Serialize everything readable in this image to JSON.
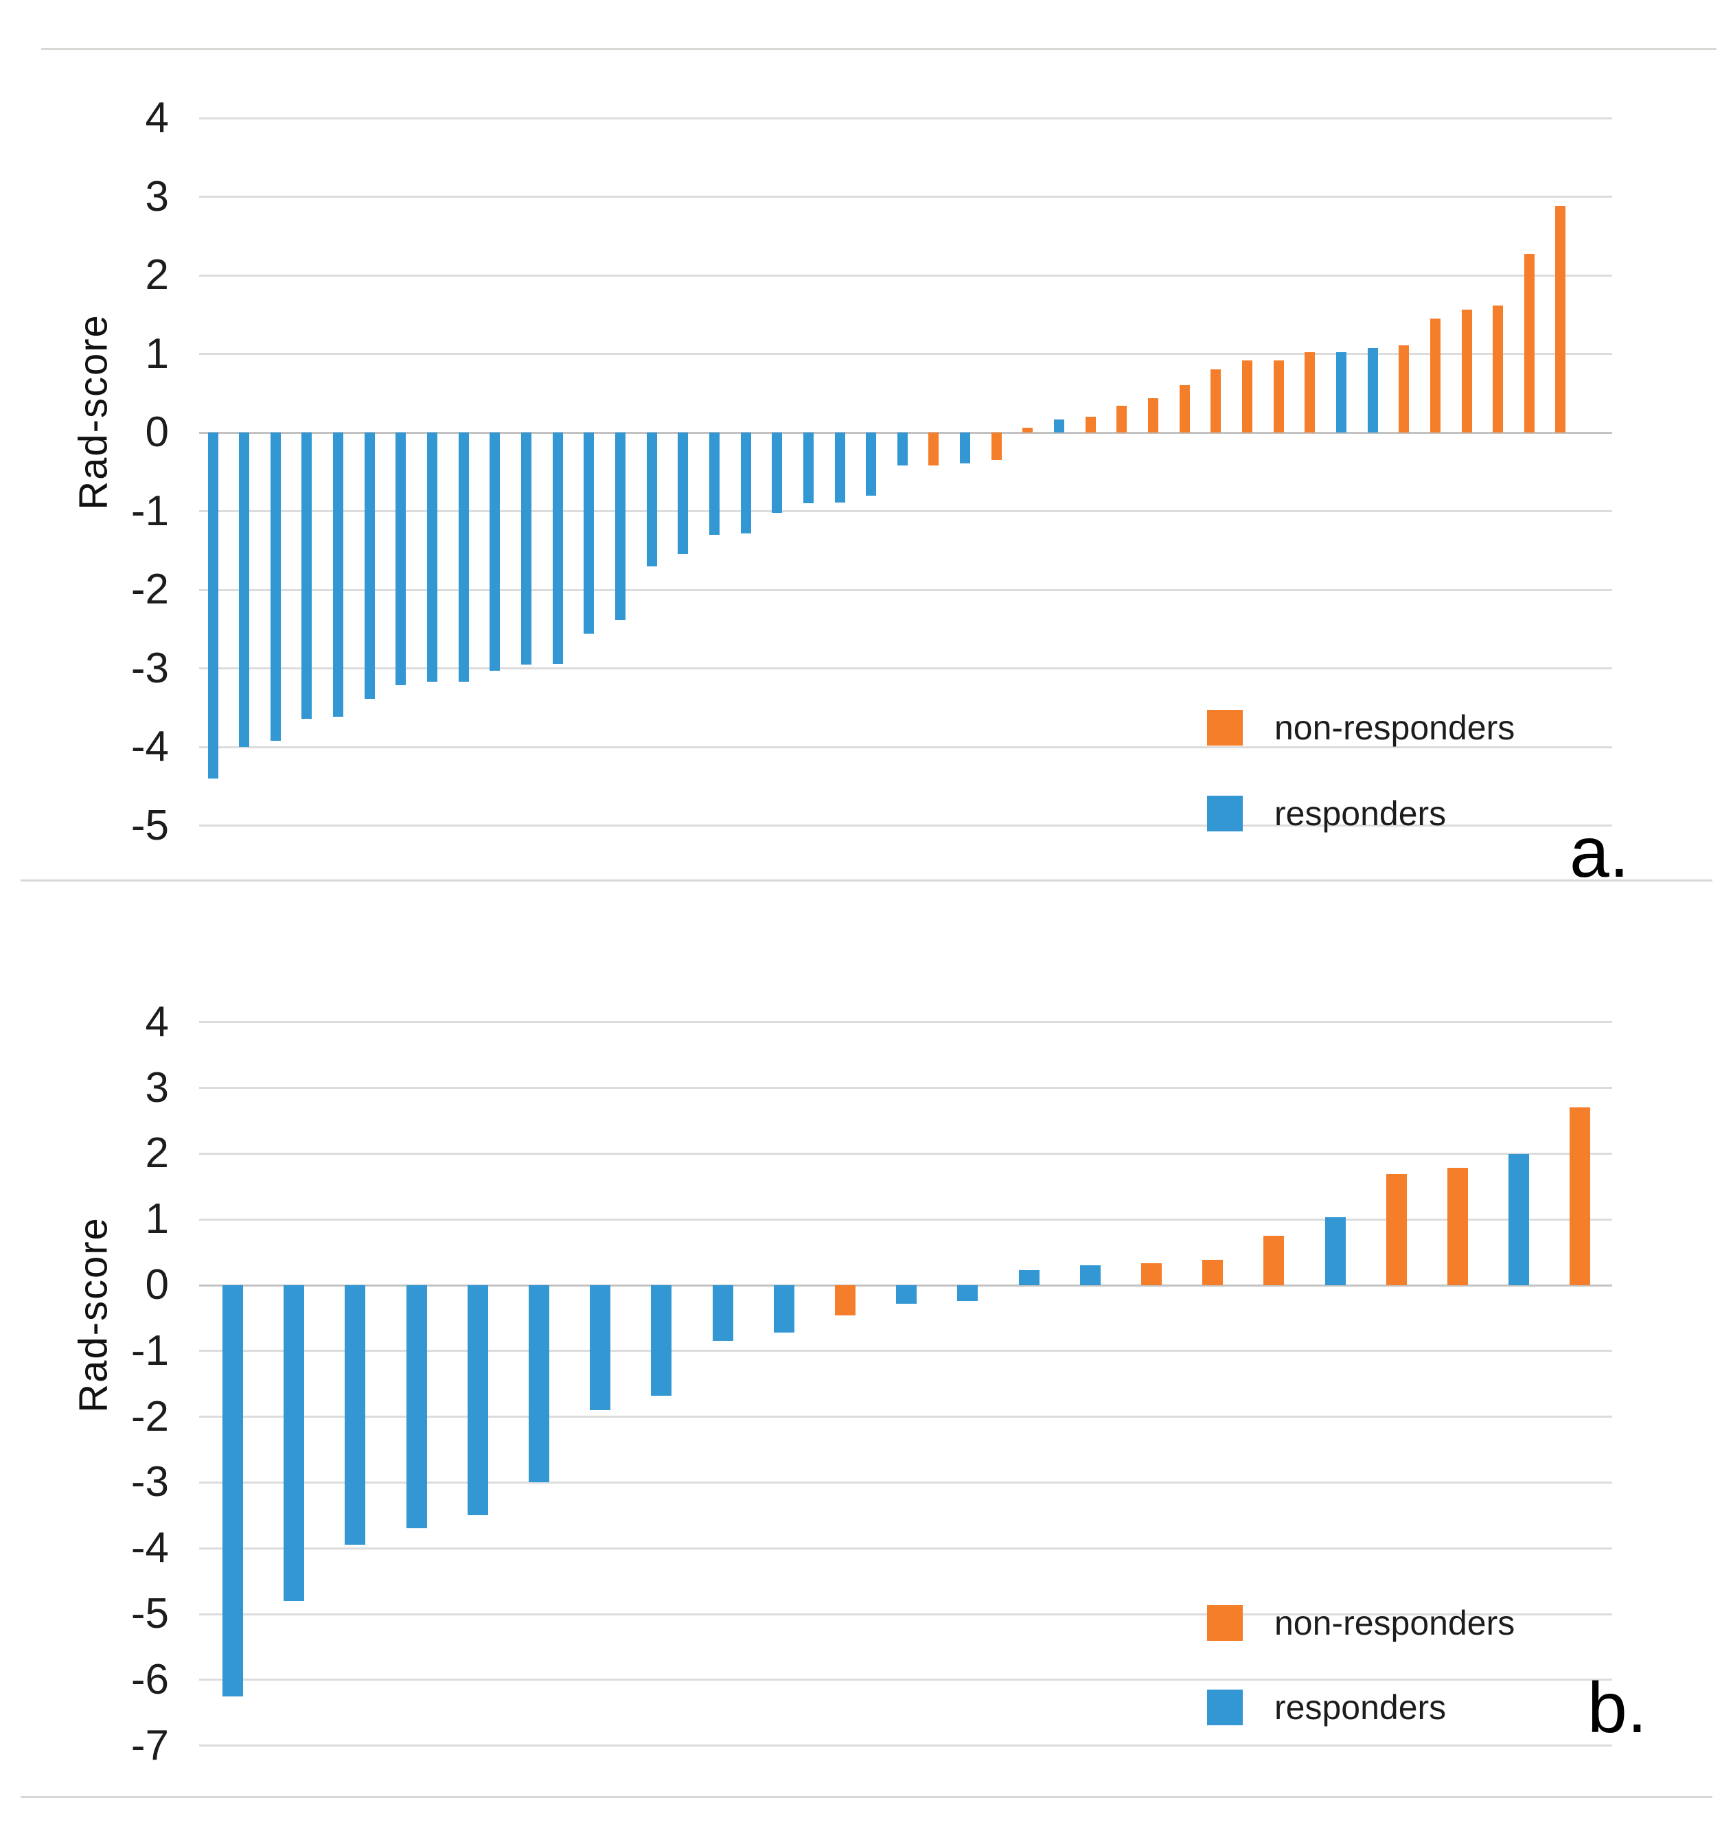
{
  "panels": [
    {
      "corner_label": "a."
    },
    {
      "corner_label": "b."
    }
  ],
  "chart_data": [
    {
      "type": "bar",
      "subtype": "waterfall",
      "title": "",
      "xlabel": "",
      "ylabel": "Rad-score",
      "ylim": [
        -5,
        4
      ],
      "yticks": [
        4,
        3,
        2,
        1,
        0,
        -1,
        -2,
        -3,
        -4,
        -5
      ],
      "grid": true,
      "legend_position": "inside-right",
      "series": [
        {
          "name": "non-responders",
          "color": "#f57e2b"
        },
        {
          "name": "responders",
          "color": "#3297d3"
        }
      ],
      "bars": [
        {
          "value": -4.4,
          "group": "responders"
        },
        {
          "value": -4.0,
          "group": "responders"
        },
        {
          "value": -3.92,
          "group": "responders"
        },
        {
          "value": -3.64,
          "group": "responders"
        },
        {
          "value": -3.62,
          "group": "responders"
        },
        {
          "value": -3.39,
          "group": "responders"
        },
        {
          "value": -3.21,
          "group": "responders"
        },
        {
          "value": -3.17,
          "group": "responders"
        },
        {
          "value": -3.17,
          "group": "responders"
        },
        {
          "value": -3.03,
          "group": "responders"
        },
        {
          "value": -2.95,
          "group": "responders"
        },
        {
          "value": -2.94,
          "group": "responders"
        },
        {
          "value": -2.56,
          "group": "responders"
        },
        {
          "value": -2.38,
          "group": "responders"
        },
        {
          "value": -1.7,
          "group": "responders"
        },
        {
          "value": -1.55,
          "group": "responders"
        },
        {
          "value": -1.3,
          "group": "responders"
        },
        {
          "value": -1.28,
          "group": "responders"
        },
        {
          "value": -1.02,
          "group": "responders"
        },
        {
          "value": -0.9,
          "group": "responders"
        },
        {
          "value": -0.89,
          "group": "responders"
        },
        {
          "value": -0.8,
          "group": "responders"
        },
        {
          "value": -0.42,
          "group": "responders"
        },
        {
          "value": -0.42,
          "group": "non-responders"
        },
        {
          "value": -0.39,
          "group": "responders"
        },
        {
          "value": -0.35,
          "group": "non-responders"
        },
        {
          "value": 0.06,
          "group": "non-responders"
        },
        {
          "value": 0.17,
          "group": "responders"
        },
        {
          "value": 0.2,
          "group": "non-responders"
        },
        {
          "value": 0.34,
          "group": "non-responders"
        },
        {
          "value": 0.44,
          "group": "non-responders"
        },
        {
          "value": 0.6,
          "group": "non-responders"
        },
        {
          "value": 0.8,
          "group": "non-responders"
        },
        {
          "value": 0.92,
          "group": "non-responders"
        },
        {
          "value": 0.92,
          "group": "non-responders"
        },
        {
          "value": 1.02,
          "group": "non-responders"
        },
        {
          "value": 1.02,
          "group": "responders"
        },
        {
          "value": 1.07,
          "group": "responders"
        },
        {
          "value": 1.11,
          "group": "non-responders"
        },
        {
          "value": 1.45,
          "group": "non-responders"
        },
        {
          "value": 1.56,
          "group": "non-responders"
        },
        {
          "value": 1.62,
          "group": "non-responders"
        },
        {
          "value": 2.27,
          "group": "non-responders"
        },
        {
          "value": 2.88,
          "group": "non-responders"
        }
      ]
    },
    {
      "type": "bar",
      "subtype": "waterfall",
      "title": "",
      "xlabel": "",
      "ylabel": "Rad-score",
      "ylim": [
        -7,
        4
      ],
      "yticks": [
        4,
        3,
        2,
        1,
        0,
        -1,
        -2,
        -3,
        -4,
        -5,
        -6,
        -7
      ],
      "grid": true,
      "legend_position": "inside-right",
      "series": [
        {
          "name": "non-responders",
          "color": "#f57e2b"
        },
        {
          "name": "responders",
          "color": "#3297d3"
        }
      ],
      "bars": [
        {
          "value": -6.25,
          "group": "responders"
        },
        {
          "value": -4.8,
          "group": "responders"
        },
        {
          "value": -3.95,
          "group": "responders"
        },
        {
          "value": -3.7,
          "group": "responders"
        },
        {
          "value": -3.5,
          "group": "responders"
        },
        {
          "value": -3.0,
          "group": "responders"
        },
        {
          "value": -1.9,
          "group": "responders"
        },
        {
          "value": -1.68,
          "group": "responders"
        },
        {
          "value": -0.85,
          "group": "responders"
        },
        {
          "value": -0.72,
          "group": "responders"
        },
        {
          "value": -0.46,
          "group": "non-responders"
        },
        {
          "value": -0.28,
          "group": "responders"
        },
        {
          "value": -0.24,
          "group": "responders"
        },
        {
          "value": 0.23,
          "group": "responders"
        },
        {
          "value": 0.3,
          "group": "responders"
        },
        {
          "value": 0.33,
          "group": "non-responders"
        },
        {
          "value": 0.39,
          "group": "non-responders"
        },
        {
          "value": 0.75,
          "group": "non-responders"
        },
        {
          "value": 1.03,
          "group": "responders"
        },
        {
          "value": 1.69,
          "group": "non-responders"
        },
        {
          "value": 1.78,
          "group": "non-responders"
        },
        {
          "value": 1.99,
          "group": "responders"
        },
        {
          "value": 2.7,
          "group": "non-responders"
        }
      ]
    }
  ]
}
